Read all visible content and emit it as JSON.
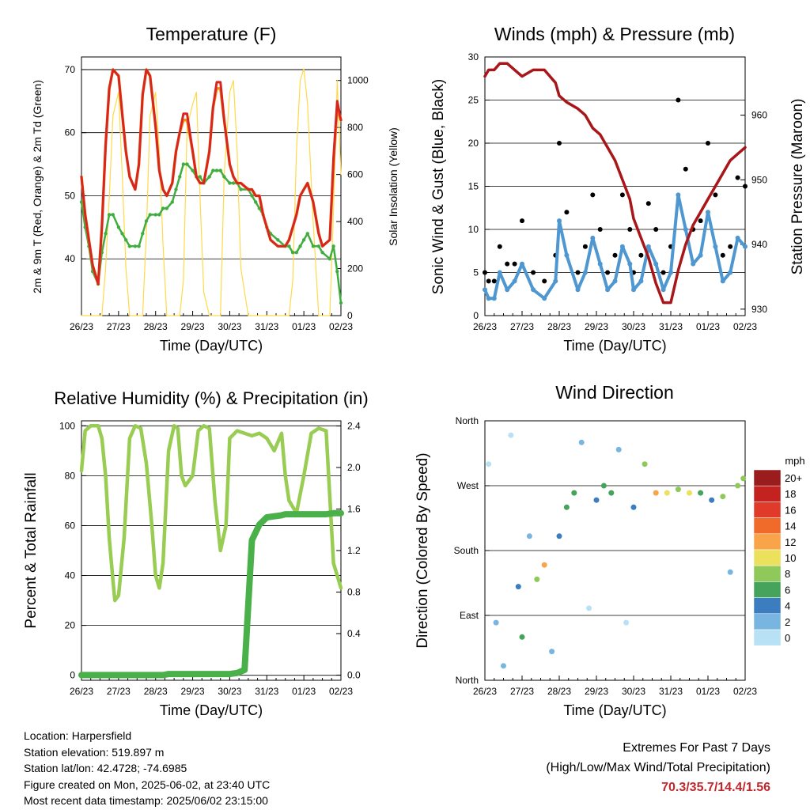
{
  "xticks": [
    "26/23",
    "27/23",
    "28/23",
    "29/23",
    "30/23",
    "31/23",
    "01/23",
    "02/23"
  ],
  "xlabel": "Time (Day/UTC)",
  "colors": {
    "red": "#d7261e",
    "orange": "#f58c1f",
    "green": "#3fae3f",
    "yellow": "#ffd94a",
    "black": "#000000",
    "blue": "#4e97d1",
    "maroon": "#a8161a",
    "rh_green": "#98cc52",
    "rain_green": "#4ab14a",
    "extremes": "#c0272d"
  },
  "chart_data": [
    {
      "type": "line",
      "title": "Temperature (F)",
      "ylabel": "2m & 9m T (Red, Orange) & 2m Td (Green)",
      "ylabel_right": "Solar Insolation (Yellow)",
      "ylim": [
        31,
        72
      ],
      "yticks": [
        40,
        50,
        60,
        70
      ],
      "ylim_right": [
        0,
        1100
      ],
      "yticks_right": [
        0,
        200,
        400,
        600,
        800,
        1000
      ],
      "x": [
        0,
        0.1,
        0.2,
        0.3,
        0.45,
        0.55,
        0.65,
        0.75,
        0.85,
        1.0,
        1.1,
        1.2,
        1.3,
        1.45,
        1.55,
        1.65,
        1.75,
        1.85,
        2.0,
        2.1,
        2.2,
        2.3,
        2.45,
        2.55,
        2.65,
        2.75,
        2.85,
        3.0,
        3.1,
        3.2,
        3.3,
        3.45,
        3.55,
        3.65,
        3.75,
        3.85,
        4.0,
        4.1,
        4.2,
        4.3,
        4.5,
        4.6,
        4.7,
        4.8,
        4.9,
        5.0,
        5.1,
        5.3,
        5.5,
        5.6,
        5.7,
        5.8,
        5.9,
        6.0,
        6.1,
        6.25,
        6.4,
        6.5,
        6.7,
        6.8,
        6.9,
        7.0
      ],
      "series": [
        {
          "values": [
            53,
            47,
            43,
            39,
            36,
            45,
            58,
            67,
            70,
            69,
            63,
            57,
            53,
            51,
            55,
            66,
            70,
            69,
            61,
            54,
            51,
            50,
            52,
            57,
            60,
            63,
            63,
            57,
            53,
            52,
            52,
            57,
            64,
            68,
            68,
            62,
            55,
            53,
            52,
            52,
            51,
            51,
            50,
            50,
            47,
            45,
            43,
            42,
            42,
            43,
            45,
            47,
            50,
            51,
            52,
            49,
            44,
            42,
            43,
            56,
            65,
            62
          ]
        },
        {
          "values": [
            53,
            47,
            43,
            39,
            36,
            45,
            58,
            67,
            70,
            69,
            63,
            57,
            53,
            51,
            55,
            66,
            70,
            69,
            61,
            54,
            51,
            50,
            52,
            57,
            60,
            62,
            62,
            57,
            53,
            52,
            52,
            57,
            64,
            67,
            67,
            62,
            55,
            53,
            52,
            52,
            51,
            51,
            50,
            50,
            47,
            45,
            43,
            42,
            42,
            43,
            45,
            47,
            50,
            51,
            52,
            49,
            44,
            42,
            43,
            55,
            64,
            62
          ]
        },
        {
          "values": [
            49,
            45,
            42,
            38,
            36,
            41,
            44,
            47,
            47,
            45,
            44,
            43,
            42,
            42,
            42,
            44,
            46,
            47,
            47,
            47,
            48,
            48,
            49,
            51,
            53,
            55,
            55,
            54,
            53,
            53,
            52,
            53,
            54,
            54,
            54,
            53,
            52,
            52,
            52,
            51,
            51,
            50,
            49,
            48,
            47,
            45,
            44,
            43,
            42,
            42,
            41,
            41,
            42,
            43,
            44,
            42,
            42,
            41,
            40,
            42,
            38,
            33
          ]
        },
        {
          "values": [
            0,
            0,
            0,
            0,
            0,
            0,
            200,
            500,
            850,
            950,
            600,
            200,
            0,
            0,
            0,
            0,
            350,
            850,
            950,
            700,
            300,
            0,
            0,
            0,
            0,
            150,
            800,
            900,
            950,
            500,
            100,
            0,
            0,
            0,
            0,
            600,
            950,
            1000,
            700,
            200,
            0,
            0,
            0,
            0,
            0,
            0,
            0,
            0,
            0,
            0,
            150,
            700,
            1000,
            1050,
            900,
            400,
            0,
            0,
            0,
            450,
            1000,
            600
          ]
        }
      ]
    },
    {
      "type": "scatter",
      "title": "Winds (mph) & Pressure (mb)",
      "ylabel": "Sonic Wind & Gust (Blue, Black)",
      "ylabel_right": "Station Pressure (Maroon)",
      "ylim": [
        0,
        30
      ],
      "yticks": [
        0,
        5,
        10,
        15,
        20,
        25,
        30
      ],
      "ylim_right": [
        929,
        969
      ],
      "yticks_right": [
        930,
        940,
        950,
        960
      ],
      "x": [
        0,
        0.1,
        0.25,
        0.4,
        0.6,
        0.8,
        1.0,
        1.3,
        1.6,
        1.9,
        2.0,
        2.2,
        2.5,
        2.7,
        2.9,
        3.1,
        3.3,
        3.5,
        3.7,
        3.9,
        4.0,
        4.2,
        4.4,
        4.6,
        4.8,
        5.0,
        5.2,
        5.4,
        5.6,
        5.8,
        6.0,
        6.2,
        6.4,
        6.6,
        6.8,
        7.0
      ],
      "series": [
        {
          "values": [
            3,
            2,
            2,
            5,
            3,
            4,
            6,
            3,
            2,
            4,
            11,
            7,
            3,
            5,
            9,
            6,
            3,
            4,
            8,
            6,
            3,
            4,
            8,
            6,
            3,
            5,
            14,
            10,
            6,
            7,
            12,
            8,
            4,
            5,
            9,
            8
          ]
        },
        {
          "values": [
            5,
            4,
            4,
            8,
            6,
            6,
            11,
            5,
            4,
            7,
            20,
            12,
            5,
            8,
            14,
            10,
            5,
            7,
            14,
            10,
            5,
            7,
            13,
            10,
            5,
            8,
            25,
            17,
            10,
            11,
            20,
            14,
            7,
            8,
            16,
            15
          ]
        },
        {
          "values": [
            966,
            967,
            967,
            968,
            968,
            967,
            966,
            967,
            967,
            965,
            963,
            962,
            961,
            960,
            958,
            957,
            955,
            953,
            950,
            947,
            944,
            941,
            938,
            934,
            931,
            931,
            936,
            940,
            943,
            945,
            947,
            949,
            951,
            953,
            954,
            955
          ]
        }
      ]
    },
    {
      "type": "line",
      "title": "Relative Humidity (%) & Precipitation (in)",
      "ylabel": "Percent & Total Rainfall",
      "ylim": [
        -2,
        102
      ],
      "yticks": [
        0,
        20,
        40,
        60,
        80,
        100
      ],
      "ylim_right": [
        -0.05,
        2.45
      ],
      "yticks_right": [
        0.0,
        0.4,
        0.8,
        1.2,
        1.6,
        2.0,
        2.4
      ],
      "x": [
        0,
        0.1,
        0.25,
        0.45,
        0.55,
        0.65,
        0.75,
        0.85,
        0.9,
        1.0,
        1.15,
        1.3,
        1.45,
        1.6,
        1.75,
        1.9,
        2.0,
        2.1,
        2.2,
        2.35,
        2.5,
        2.6,
        2.7,
        2.8,
        3.0,
        3.15,
        3.3,
        3.45,
        3.6,
        3.75,
        3.9,
        4.0,
        4.2,
        4.4,
        4.6,
        4.8,
        5.0,
        5.2,
        5.4,
        5.5,
        5.6,
        5.8,
        6.0,
        6.2,
        6.4,
        6.6,
        6.8,
        7.0
      ],
      "series": [
        {
          "values": [
            82,
            98,
            100,
            100,
            95,
            80,
            55,
            38,
            30,
            32,
            55,
            95,
            100,
            99,
            85,
            60,
            40,
            35,
            45,
            90,
            100,
            99,
            80,
            76,
            80,
            98,
            100,
            99,
            70,
            50,
            60,
            95,
            98,
            97,
            96,
            97,
            95,
            90,
            97,
            80,
            70,
            65,
            80,
            97,
            99,
            98,
            45,
            35
          ]
        },
        {
          "values": [
            0,
            0,
            0,
            0,
            0,
            0,
            0,
            0,
            0,
            0,
            0,
            0,
            0,
            0,
            0,
            0,
            0,
            0,
            0,
            0.01,
            0.01,
            0.01,
            0.01,
            0.01,
            0.01,
            0.01,
            0.01,
            0.01,
            0.01,
            0.01,
            0.01,
            0.01,
            0.02,
            0.05,
            1.3,
            1.45,
            1.52,
            1.53,
            1.54,
            1.55,
            1.55,
            1.55,
            1.55,
            1.55,
            1.55,
            1.55,
            1.56,
            1.56
          ]
        }
      ]
    },
    {
      "type": "scatter",
      "title": "Wind Direction",
      "ylabel": "Direction (Colored By Speed)",
      "ylim": [
        0,
        360
      ],
      "yticks": [
        0,
        90,
        180,
        270,
        360
      ],
      "ytick_labels": [
        "North",
        "East",
        "South",
        "West",
        "North"
      ],
      "legend_title": "mph",
      "legend_labels": [
        "20+",
        "18",
        "16",
        "14",
        "12",
        "10",
        "8",
        "6",
        "4",
        "2",
        "0"
      ],
      "legend_colors": [
        "#9b1c1c",
        "#c4221f",
        "#e03b2a",
        "#f06a2a",
        "#f9a448",
        "#ece15c",
        "#8ec95a",
        "#45a35c",
        "#3c7dc0",
        "#78b5e0",
        "#b9e1f5"
      ],
      "x": [
        0.1,
        0.3,
        0.5,
        0.7,
        0.9,
        1.0,
        1.2,
        1.4,
        1.6,
        1.8,
        2.0,
        2.2,
        2.4,
        2.6,
        2.8,
        3.0,
        3.2,
        3.4,
        3.6,
        3.8,
        4.0,
        4.3,
        4.6,
        4.9,
        5.2,
        5.5,
        5.8,
        6.1,
        6.4,
        6.6,
        6.8,
        6.95
      ],
      "series": [
        {
          "name": "direction",
          "values": [
            300,
            80,
            20,
            340,
            130,
            60,
            200,
            140,
            160,
            40,
            200,
            240,
            260,
            330,
            100,
            250,
            270,
            260,
            320,
            80,
            240,
            300,
            260,
            260,
            265,
            260,
            260,
            250,
            255,
            150,
            270,
            280
          ]
        },
        {
          "name": "speed",
          "values": [
            1,
            2,
            3,
            1,
            5,
            6,
            3,
            8,
            12,
            3,
            5,
            6,
            7,
            2,
            1,
            4,
            6,
            7,
            2,
            1,
            4,
            8,
            12,
            10,
            9,
            10,
            7,
            4,
            8,
            3,
            9,
            8
          ]
        }
      ]
    }
  ],
  "footer": {
    "location": "Location: Harpersfield",
    "elevation": "Station elevation: 519.897 m",
    "latlon": "Station lat/lon: 42.4728; -74.6985",
    "created": "Figure created on Mon, 2025-06-02, at 23:40 UTC",
    "recent": "Most recent data timestamp: 2025/06/02 23:15:00"
  },
  "extremes": {
    "title": "Extremes For Past 7 Days",
    "subtitle": "(High/Low/Max Wind/Total Precipitation)",
    "values": "70.3/35.7/14.4/1.56"
  }
}
